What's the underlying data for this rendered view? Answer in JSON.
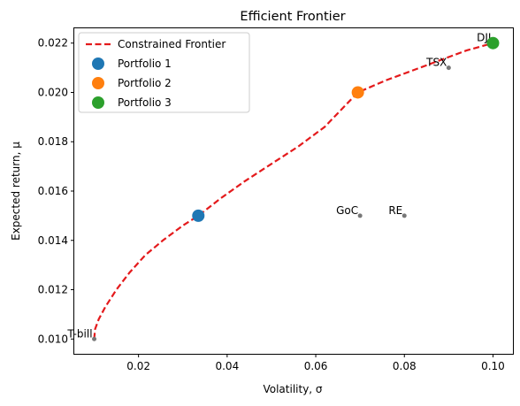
{
  "chart_data": {
    "type": "scatter",
    "title": "Efficient Frontier",
    "xlabel": "Volatility, σ",
    "ylabel": "Expected return, μ",
    "xlim": [
      0.0055,
      0.1045
    ],
    "ylim": [
      0.0094,
      0.0226
    ],
    "xticks": [
      0.02,
      0.04,
      0.06,
      0.08,
      0.1
    ],
    "xtick_labels": [
      "0.02",
      "0.04",
      "0.06",
      "0.08",
      "0.10"
    ],
    "yticks": [
      0.01,
      0.012,
      0.014,
      0.016,
      0.018,
      0.02,
      0.022
    ],
    "ytick_labels": [
      "0.010",
      "0.012",
      "0.014",
      "0.016",
      "0.018",
      "0.020",
      "0.022"
    ],
    "grid": false,
    "legend_position": "upper-left",
    "frontier": {
      "name": "Constrained Frontier",
      "color": "#e41a1c",
      "style": "dashed",
      "x": [
        0.01,
        0.0102,
        0.011,
        0.0125,
        0.015,
        0.018,
        0.0215,
        0.0255,
        0.03,
        0.0335,
        0.0385,
        0.044,
        0.05,
        0.056,
        0.062,
        0.0695,
        0.076,
        0.082,
        0.088,
        0.094,
        0.1
      ],
      "y": [
        0.01,
        0.0104,
        0.0108,
        0.0113,
        0.012,
        0.0127,
        0.0134,
        0.014,
        0.0146,
        0.015,
        0.0157,
        0.0164,
        0.0171,
        0.0178,
        0.0186,
        0.02,
        0.0205,
        0.0209,
        0.0213,
        0.0217,
        0.022
      ]
    },
    "portfolios": [
      {
        "name": "Portfolio 1",
        "x": 0.0335,
        "y": 0.015,
        "color": "#1f77b4"
      },
      {
        "name": "Portfolio 2",
        "x": 0.0695,
        "y": 0.02,
        "color": "#ff7f0e"
      },
      {
        "name": "Portfolio 3",
        "x": 0.1,
        "y": 0.022,
        "color": "#2ca02c"
      }
    ],
    "assets": [
      {
        "label": "T-bill",
        "x": 0.01,
        "y": 0.01
      },
      {
        "label": "GoC",
        "x": 0.07,
        "y": 0.015
      },
      {
        "label": "RE",
        "x": 0.08,
        "y": 0.015
      },
      {
        "label": "TSX",
        "x": 0.09,
        "y": 0.021
      },
      {
        "label": "DJI",
        "x": 0.1,
        "y": 0.022
      }
    ],
    "asset_color": "#777777"
  }
}
